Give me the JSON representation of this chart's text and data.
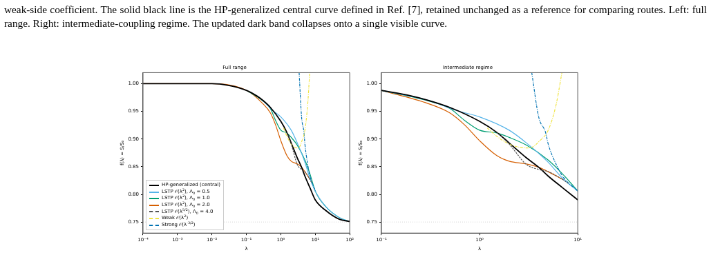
{
  "chart_data": [
    {
      "type": "line",
      "title": "Full range",
      "xlabel": "λ",
      "ylabel": "f(λ) = S/S₀",
      "log": "x",
      "grid": false,
      "legend": "bottom left",
      "annotations": [
        "weak-side coefficient. The solid black line is the HP-generalized central curve defined in Ref. [7], retained unchanged as a reference for comparing routes. Left: full range. Right: intermediate-coupling regime. The updated dark band collapses onto a single visible curve."
      ],
      "xlim": [
        0.0001,
        100
      ],
      "xticks": [
        {
          "value": 0.0001,
          "label": "10⁻⁴"
        },
        {
          "value": 0.001,
          "label": "10⁻³"
        },
        {
          "value": 0.01,
          "label": "10⁻²"
        },
        {
          "value": 0.1,
          "label": "10⁻¹"
        },
        {
          "value": 1,
          "label": "10⁰"
        },
        {
          "value": 10,
          "label": "10¹"
        },
        {
          "value": 100,
          "label": "10²"
        }
      ],
      "ylim": [
        0.73,
        1.02
      ],
      "yticks": [
        {
          "value": 0.75,
          "label": "0.75"
        },
        {
          "value": 0.8,
          "label": "0.80"
        },
        {
          "value": 0.85,
          "label": "0.85"
        },
        {
          "value": 0.9,
          "label": "0.90"
        },
        {
          "value": 0.95,
          "label": "0.95"
        },
        {
          "value": 1,
          "label": "1.00"
        }
      ],
      "ref_lines": [
        {
          "axis": "y",
          "value": 0.75,
          "color": "#cccccc",
          "line_style": "dotted"
        }
      ],
      "series": [
        {
          "name": "HP-generalized (central)",
          "color": "#000000",
          "line_style": "solid",
          "x": [
            0.0001,
            0.001,
            0.01,
            0.03,
            0.1,
            0.2,
            0.3,
            0.5,
            1,
            1.5,
            2,
            3,
            4,
            5,
            7,
            10,
            20,
            50,
            100
          ],
          "values": [
            1,
            1,
            1,
            0.997,
            0.988,
            0.978,
            0.97,
            0.957,
            0.932,
            0.912,
            0.893,
            0.866,
            0.849,
            0.833,
            0.812,
            0.79,
            0.771,
            0.755,
            0.751
          ]
        },
        {
          "name": "LSTP 𝒪(λ$^{2}$), Λ$_{0}$ = 0.5",
          "color": "#56b4e9",
          "line_style": "solid",
          "x": [
            0.3,
            0.6,
            1,
            2,
            3,
            5,
            7,
            10,
            20,
            50,
            100
          ],
          "values": [
            0.97,
            0.951,
            0.94,
            0.916,
            0.893,
            0.858,
            0.829,
            0.806,
            0.778,
            0.758,
            0.751
          ]
        },
        {
          "name": "LSTP 𝒪(λ$^{2}$), Λ$_{0}$ = 1.0",
          "color": "#009e73",
          "line_style": "solid",
          "x": [
            0.1,
            0.3,
            0.5,
            0.7,
            1,
            1.5,
            2,
            3,
            5,
            7,
            10,
            20,
            50,
            100
          ],
          "values": [
            0.988,
            0.969,
            0.955,
            0.934,
            0.916,
            0.911,
            0.903,
            0.889,
            0.862,
            0.837,
            0.806,
            0.778,
            0.758,
            0.751
          ]
        },
        {
          "name": "LSTP 𝒪(λ$^{2}$), Λ$_{0}$ = 2.0",
          "color": "#d55e00",
          "line_style": "solid",
          "x": [
            0.0001,
            0.01,
            0.1,
            0.3,
            0.5,
            0.7,
            1,
            1.5,
            2,
            3,
            4,
            5,
            7
          ],
          "values": [
            1,
            1,
            0.988,
            0.964,
            0.947,
            0.926,
            0.897,
            0.87,
            0.86,
            0.855,
            0.849,
            0.841,
            0.827
          ]
        },
        {
          "name": "LSTP 𝒪(λ$^{5/2}$), Λ$_{0}$ = 4.0",
          "color": "#555555",
          "line_style": "dashed",
          "x": [
            1.5,
            2,
            3,
            4,
            5,
            7,
            8
          ],
          "values": [
            0.912,
            0.891,
            0.854,
            0.845,
            0.841,
            0.827,
            0.82
          ]
        },
        {
          "name": "Weak 𝒪(λ$^{2}$)",
          "color": "#f0e442",
          "line_style": "dashdot",
          "x": [
            1.2,
            1.5,
            2,
            3,
            3.5,
            4,
            5,
            6,
            6.9
          ],
          "values": [
            0.92,
            0.905,
            0.891,
            0.884,
            0.886,
            0.895,
            0.916,
            0.961,
            1.02
          ]
        },
        {
          "name": "Strong 𝒪(λ$^{-3/2}$)",
          "color": "#0072b2",
          "line_style": "dashdot",
          "x": [
            3.4,
            4,
            4.7,
            5,
            6,
            7,
            10
          ],
          "values": [
            1.02,
            0.94,
            0.912,
            0.891,
            0.855,
            0.833,
            0.806
          ]
        }
      ]
    },
    {
      "type": "line",
      "title": "Intermediate regime",
      "xlabel": "λ",
      "ylabel": "f(λ) = S/S₀",
      "log": "x",
      "grid": false,
      "xlim": [
        0.1,
        10
      ],
      "xticks": [
        {
          "value": 0.1,
          "label": "10⁻¹"
        },
        {
          "value": 1,
          "label": "10⁰"
        },
        {
          "value": 10,
          "label": "10¹"
        }
      ],
      "ylim": [
        0.73,
        1.02
      ],
      "yticks": [
        {
          "value": 0.75,
          "label": "0.75"
        },
        {
          "value": 0.8,
          "label": "0.80"
        },
        {
          "value": 0.85,
          "label": "0.85"
        },
        {
          "value": 0.9,
          "label": "0.90"
        },
        {
          "value": 0.95,
          "label": "0.95"
        },
        {
          "value": 1,
          "label": "1.00"
        }
      ],
      "ref_lines": [
        {
          "axis": "y",
          "value": 0.75,
          "color": "#cccccc",
          "line_style": "dotted"
        }
      ],
      "series": [
        {
          "color": "#000000",
          "line_style": "solid",
          "x": [
            0.1,
            0.2,
            0.3,
            0.5,
            1,
            1.5,
            2,
            3,
            4,
            5,
            7,
            10
          ],
          "values": [
            0.988,
            0.978,
            0.97,
            0.957,
            0.932,
            0.912,
            0.893,
            0.866,
            0.849,
            0.833,
            0.812,
            0.79
          ]
        },
        {
          "color": "#56b4e9",
          "line_style": "solid",
          "x": [
            0.1,
            0.3,
            0.6,
            1,
            2,
            3,
            5,
            7,
            10
          ],
          "values": [
            0.988,
            0.97,
            0.951,
            0.94,
            0.916,
            0.893,
            0.858,
            0.829,
            0.806
          ]
        },
        {
          "color": "#009e73",
          "line_style": "solid",
          "x": [
            0.1,
            0.3,
            0.5,
            0.7,
            1,
            1.5,
            2,
            3,
            5,
            7,
            10
          ],
          "values": [
            0.988,
            0.969,
            0.955,
            0.934,
            0.916,
            0.911,
            0.903,
            0.889,
            0.862,
            0.837,
            0.806
          ]
        },
        {
          "color": "#d55e00",
          "line_style": "solid",
          "x": [
            0.1,
            0.3,
            0.5,
            0.7,
            1,
            1.5,
            2,
            3,
            4,
            5,
            7
          ],
          "values": [
            0.988,
            0.964,
            0.947,
            0.926,
            0.897,
            0.87,
            0.86,
            0.855,
            0.849,
            0.841,
            0.827
          ]
        },
        {
          "color": "#555555",
          "line_style": "dashed",
          "x": [
            1.5,
            2,
            3,
            4,
            5,
            7,
            8
          ],
          "values": [
            0.912,
            0.891,
            0.854,
            0.845,
            0.841,
            0.827,
            0.82
          ]
        },
        {
          "color": "#f0e442",
          "line_style": "dashdot",
          "x": [
            1.2,
            1.5,
            2,
            3,
            3.5,
            4,
            5,
            6,
            6.9
          ],
          "values": [
            0.92,
            0.905,
            0.891,
            0.884,
            0.886,
            0.895,
            0.916,
            0.961,
            1.02
          ]
        },
        {
          "color": "#0072b2",
          "line_style": "dashdot",
          "x": [
            3.4,
            4,
            4.7,
            5,
            6,
            7,
            10
          ],
          "values": [
            1.02,
            0.94,
            0.912,
            0.891,
            0.855,
            0.833,
            0.806
          ]
        }
      ]
    }
  ]
}
